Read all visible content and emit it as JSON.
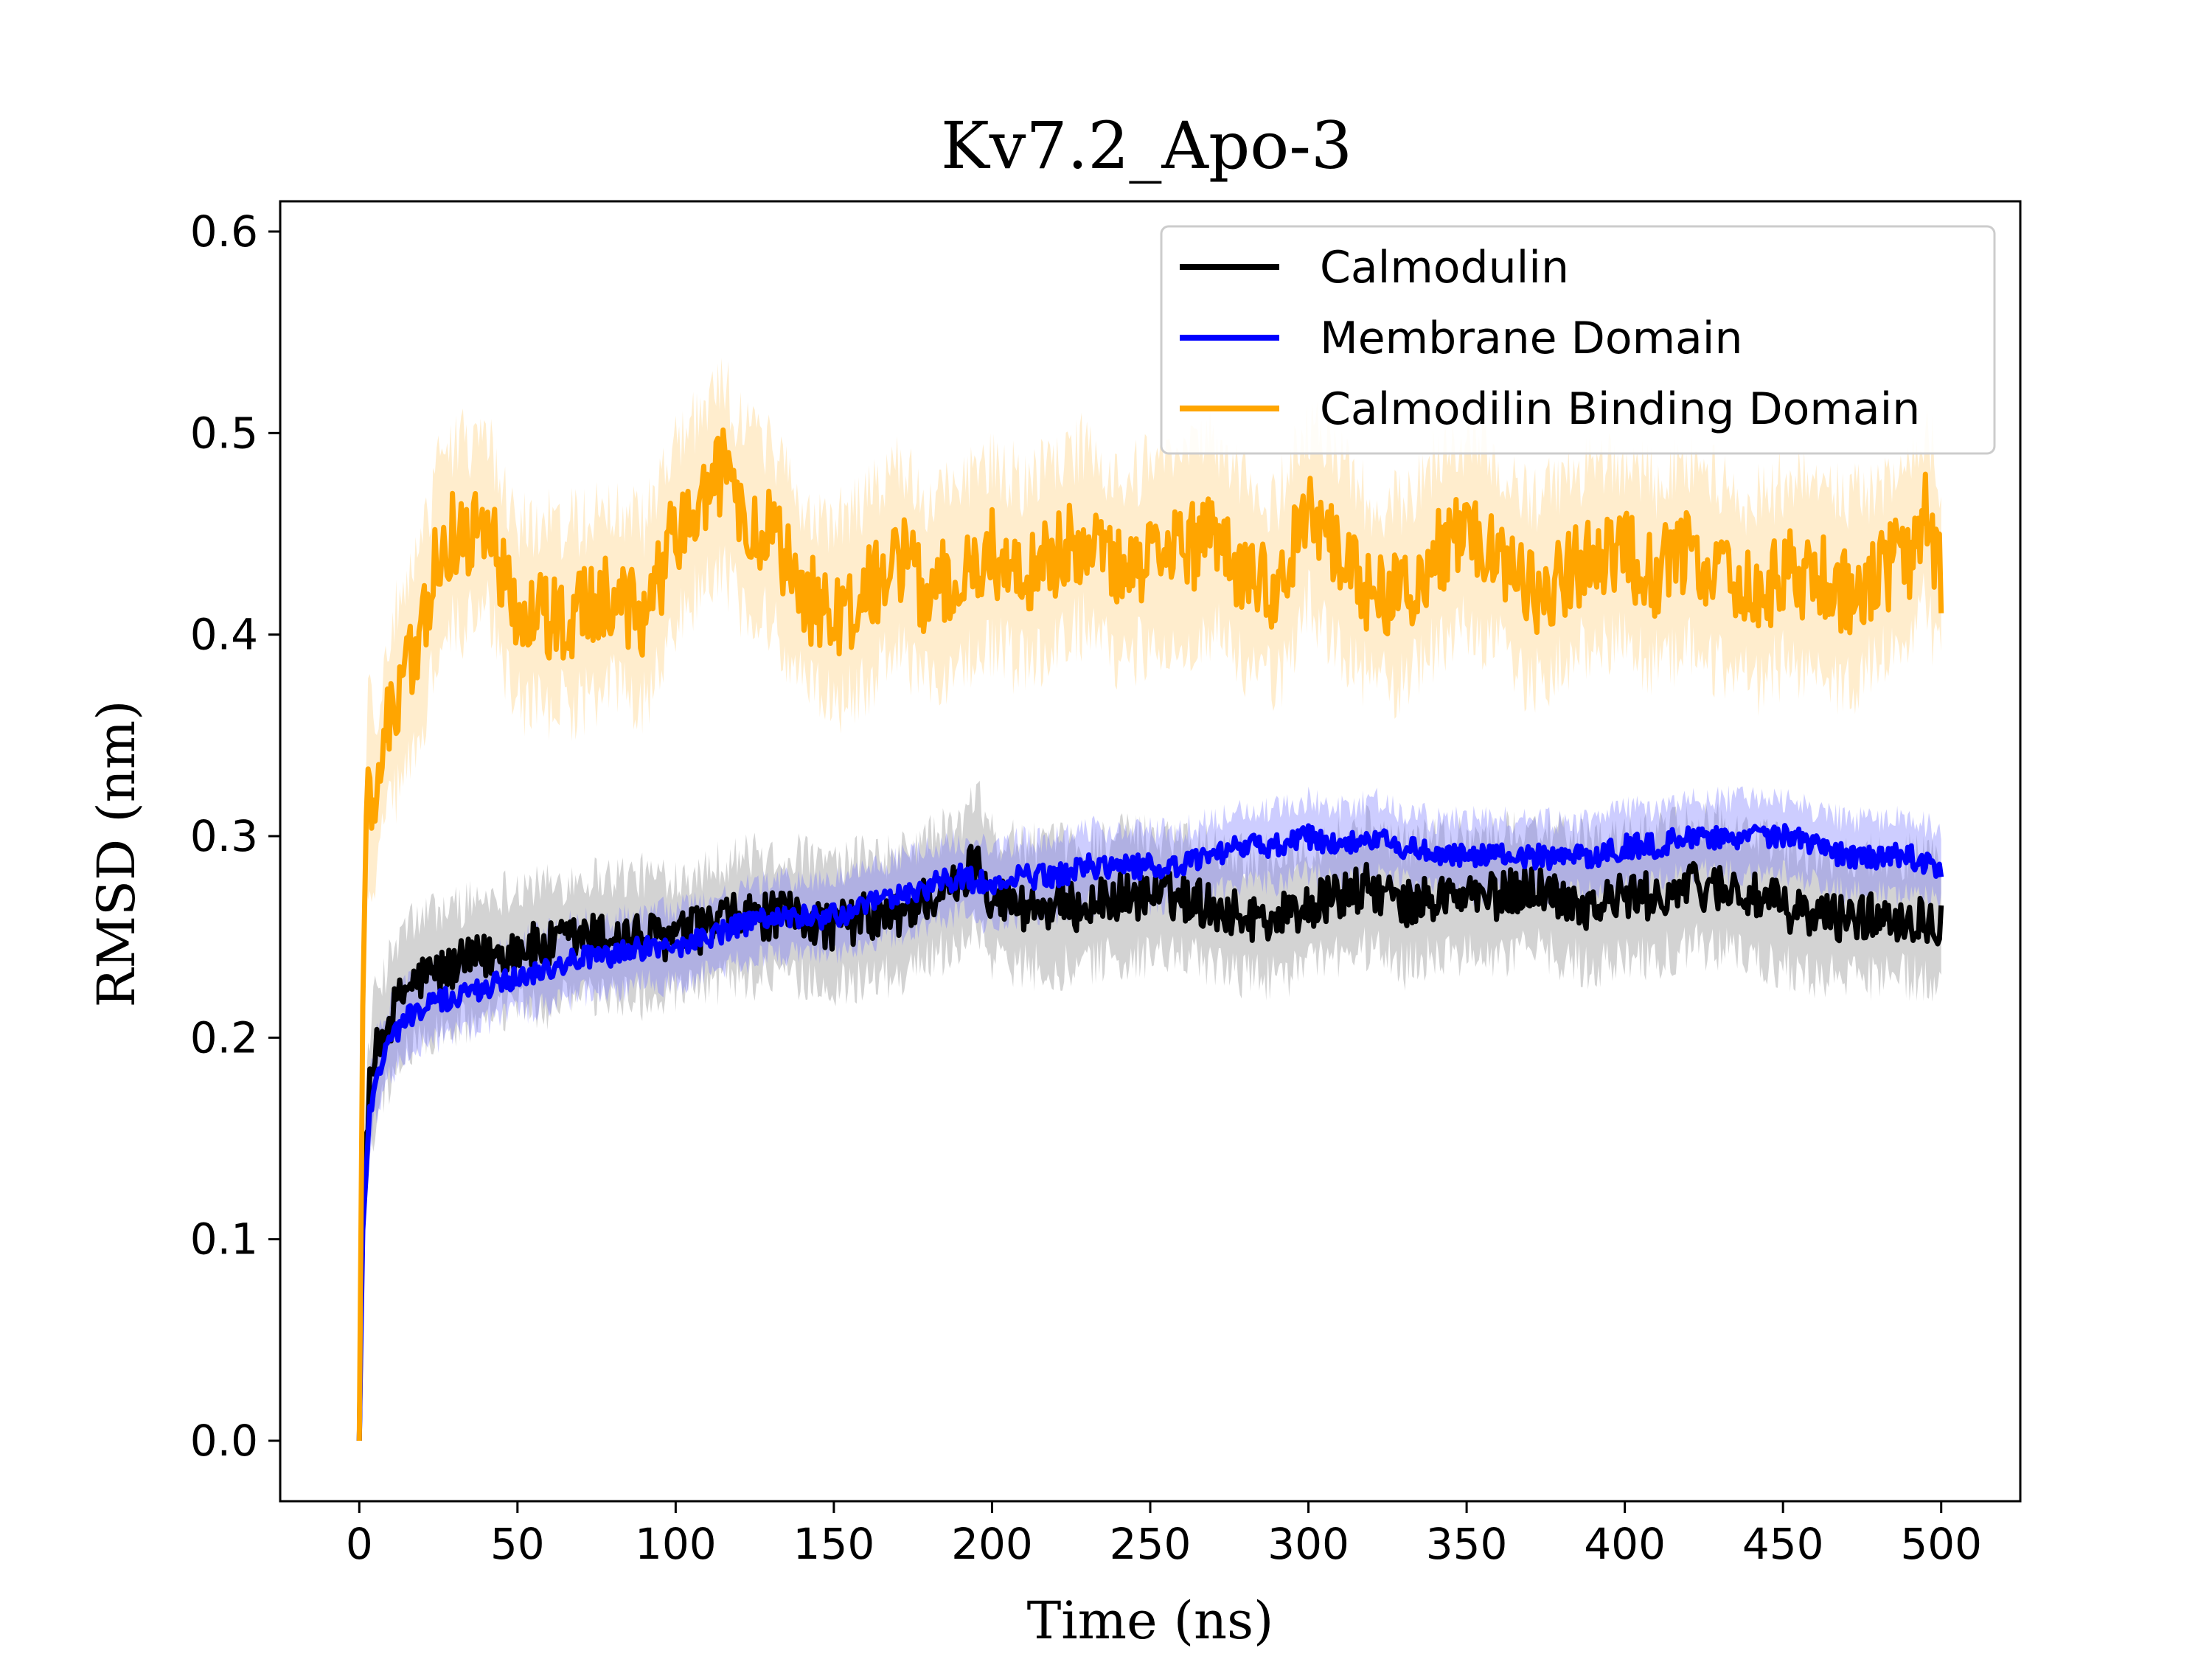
{
  "chart_data": {
    "type": "line",
    "title": "Kv7.2_Apo-3",
    "xlabel": "Time (ns)",
    "ylabel": "RMSD (nm)",
    "xlim": [
      -25,
      525
    ],
    "ylim": [
      -0.03,
      0.615
    ],
    "xticks": [
      0,
      50,
      100,
      150,
      200,
      250,
      300,
      350,
      400,
      450,
      500
    ],
    "yticks": [
      0.0,
      0.1,
      0.2,
      0.3,
      0.4,
      0.5,
      0.6
    ],
    "xtick_labels": [
      "0",
      "50",
      "100",
      "150",
      "200",
      "250",
      "300",
      "350",
      "400",
      "450",
      "500"
    ],
    "ytick_labels": [
      "0.0",
      "0.1",
      "0.2",
      "0.3",
      "0.4",
      "0.5",
      "0.6"
    ],
    "legend_position": "top-right",
    "grid": false,
    "series": [
      {
        "name": "Calmodulin",
        "color": "#000000",
        "band_color": "#808080",
        "x": [
          0,
          1,
          3,
          5,
          10,
          15,
          20,
          30,
          40,
          50,
          60,
          70,
          80,
          90,
          100,
          110,
          120,
          130,
          140,
          150,
          160,
          170,
          180,
          190,
          195,
          200,
          210,
          220,
          230,
          240,
          250,
          260,
          270,
          280,
          290,
          300,
          310,
          320,
          330,
          340,
          350,
          360,
          370,
          380,
          390,
          400,
          410,
          420,
          430,
          440,
          450,
          460,
          470,
          480,
          490,
          500
        ],
        "y": [
          0.0,
          0.12,
          0.17,
          0.19,
          0.21,
          0.225,
          0.23,
          0.235,
          0.24,
          0.245,
          0.245,
          0.25,
          0.25,
          0.25,
          0.25,
          0.255,
          0.26,
          0.26,
          0.26,
          0.255,
          0.26,
          0.26,
          0.27,
          0.275,
          0.29,
          0.27,
          0.265,
          0.265,
          0.265,
          0.27,
          0.27,
          0.27,
          0.265,
          0.26,
          0.26,
          0.265,
          0.27,
          0.275,
          0.265,
          0.27,
          0.27,
          0.27,
          0.275,
          0.27,
          0.265,
          0.27,
          0.27,
          0.275,
          0.275,
          0.27,
          0.265,
          0.26,
          0.26,
          0.26,
          0.26,
          0.258
        ],
        "band_halfwidth": 0.03
      },
      {
        "name": "Membrane Domain",
        "color": "#0000ff",
        "band_color": "#7070ff",
        "x": [
          0,
          1,
          3,
          5,
          10,
          15,
          20,
          30,
          40,
          50,
          60,
          70,
          80,
          90,
          100,
          110,
          120,
          130,
          140,
          150,
          160,
          170,
          180,
          190,
          200,
          210,
          220,
          230,
          240,
          250,
          260,
          270,
          280,
          290,
          300,
          310,
          320,
          330,
          340,
          350,
          360,
          370,
          380,
          390,
          400,
          410,
          420,
          430,
          440,
          450,
          460,
          470,
          480,
          490,
          500
        ],
        "y": [
          0.0,
          0.1,
          0.16,
          0.18,
          0.2,
          0.21,
          0.215,
          0.22,
          0.225,
          0.23,
          0.235,
          0.24,
          0.24,
          0.245,
          0.245,
          0.25,
          0.255,
          0.26,
          0.26,
          0.26,
          0.265,
          0.27,
          0.275,
          0.28,
          0.275,
          0.28,
          0.28,
          0.285,
          0.285,
          0.285,
          0.285,
          0.29,
          0.295,
          0.295,
          0.3,
          0.295,
          0.3,
          0.295,
          0.29,
          0.29,
          0.29,
          0.29,
          0.29,
          0.29,
          0.295,
          0.295,
          0.3,
          0.3,
          0.3,
          0.3,
          0.295,
          0.29,
          0.29,
          0.29,
          0.285
        ],
        "band_halfwidth": 0.018
      },
      {
        "name": "Calmodilin Binding Domain",
        "color": "#ffa500",
        "band_color": "#ffcc70",
        "x": [
          0,
          1,
          2,
          3,
          5,
          8,
          10,
          15,
          20,
          25,
          30,
          35,
          40,
          45,
          50,
          60,
          70,
          80,
          90,
          100,
          110,
          115,
          120,
          130,
          140,
          150,
          160,
          170,
          180,
          190,
          200,
          210,
          220,
          230,
          240,
          250,
          260,
          270,
          280,
          290,
          300,
          310,
          320,
          330,
          340,
          350,
          360,
          370,
          380,
          390,
          400,
          410,
          420,
          430,
          440,
          450,
          460,
          470,
          480,
          490,
          495,
          500
        ],
        "y": [
          0.0,
          0.2,
          0.3,
          0.33,
          0.31,
          0.35,
          0.36,
          0.38,
          0.4,
          0.44,
          0.45,
          0.45,
          0.46,
          0.43,
          0.41,
          0.41,
          0.41,
          0.42,
          0.41,
          0.45,
          0.47,
          0.48,
          0.46,
          0.45,
          0.42,
          0.41,
          0.42,
          0.44,
          0.42,
          0.43,
          0.44,
          0.43,
          0.44,
          0.45,
          0.43,
          0.44,
          0.44,
          0.45,
          0.43,
          0.42,
          0.46,
          0.44,
          0.42,
          0.42,
          0.44,
          0.45,
          0.44,
          0.42,
          0.43,
          0.44,
          0.44,
          0.43,
          0.44,
          0.43,
          0.42,
          0.43,
          0.43,
          0.42,
          0.43,
          0.44,
          0.46,
          0.43
        ],
        "band_halfwidth": 0.045
      }
    ]
  }
}
